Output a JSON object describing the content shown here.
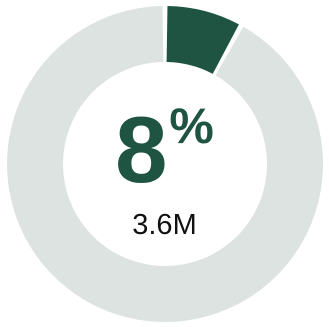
{
  "chart_data": {
    "type": "pie",
    "subtype": "donut",
    "slices": [
      {
        "value": 8,
        "color": "#1e5441"
      },
      {
        "value": 92,
        "color": "#dce3e0"
      }
    ],
    "center_value": "8",
    "center_unit": "%",
    "center_subtitle": "3.6M"
  },
  "colors": {
    "accent": "#1e5441",
    "track": "#dce3e0",
    "text": "#111111"
  }
}
